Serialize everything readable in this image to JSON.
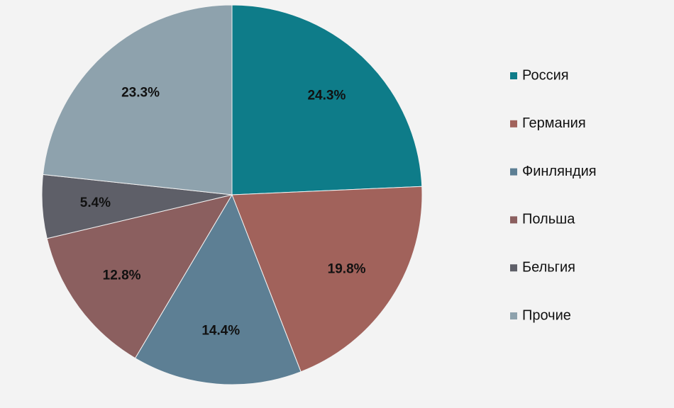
{
  "chart_data": {
    "type": "pie",
    "categories": [
      "Россия",
      "Германия",
      "Финляндия",
      "Польша",
      "Бельгия",
      "Прочие"
    ],
    "values": [
      24.3,
      19.8,
      14.4,
      12.8,
      5.4,
      23.3
    ],
    "value_labels": [
      "24.3%",
      "19.8%",
      "14.4%",
      "12.8%",
      "5.4%",
      "23.3%"
    ],
    "colors": [
      "#0e7c89",
      "#a1625b",
      "#5d7f94",
      "#8b5f5f",
      "#5e5f68",
      "#8ea2ad"
    ],
    "legend": "right"
  }
}
